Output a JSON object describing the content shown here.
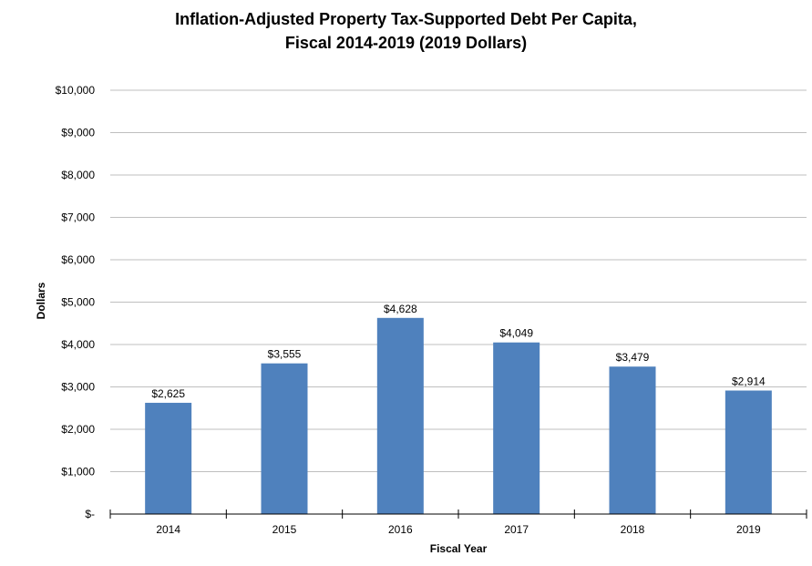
{
  "chart_data": {
    "type": "bar",
    "title_line1": "Inflation-Adjusted Property Tax-Supported Debt Per Capita,",
    "title_line2": "Fiscal 2014-2019 (2019 Dollars)",
    "xlabel": "Fiscal Year",
    "ylabel": "Dollars",
    "categories": [
      "2014",
      "2015",
      "2016",
      "2017",
      "2018",
      "2019"
    ],
    "values": [
      2625,
      3555,
      4628,
      4049,
      3479,
      2914
    ],
    "data_labels": [
      "$2,625",
      "$3,555",
      "$4,628",
      "$4,049",
      "$3,479",
      "$2,914"
    ],
    "ylim": [
      0,
      10000
    ],
    "yticks": [
      0,
      1000,
      2000,
      3000,
      4000,
      5000,
      6000,
      7000,
      8000,
      9000,
      10000
    ],
    "ytick_labels": [
      "$-",
      "$1,000",
      "$2,000",
      "$3,000",
      "$4,000",
      "$5,000",
      "$6,000",
      "$7,000",
      "$8,000",
      "$9,000",
      "$10,000"
    ],
    "grid": true,
    "legend": "none",
    "bar_color": "#4F81BD",
    "grid_color": "#BFBFBF",
    "axis_color": "#000000"
  }
}
